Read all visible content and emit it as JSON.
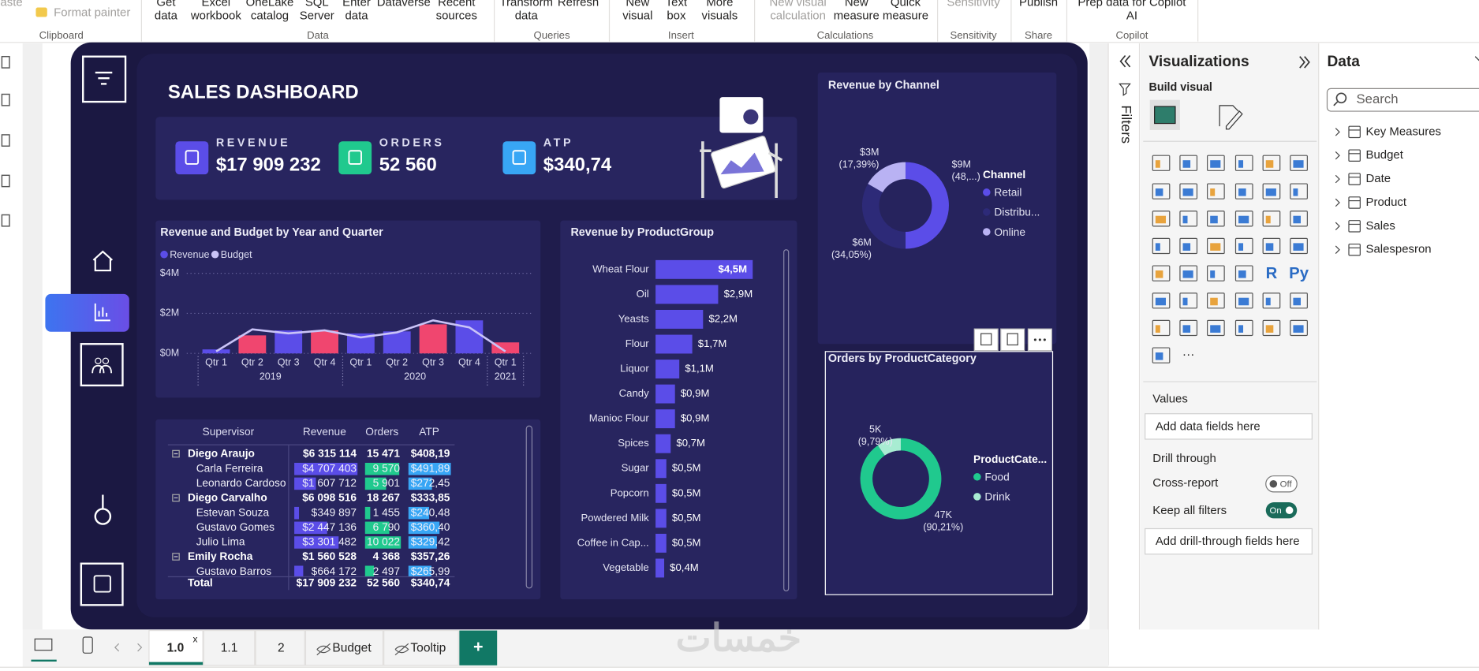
{
  "ribbon": {
    "groups": [
      {
        "label": "Clipboard",
        "buttons": [
          [
            "Paste"
          ],
          [
            "Format painter"
          ]
        ]
      },
      {
        "label": "Data",
        "buttons": [
          [
            "Get",
            "data"
          ],
          [
            "Excel",
            "workbook"
          ],
          [
            "OneLake",
            "catalog"
          ],
          [
            "SQL",
            "Server"
          ],
          [
            "Enter",
            "data"
          ],
          [
            "Dataverse"
          ],
          [
            "Recent",
            "sources"
          ]
        ]
      },
      {
        "label": "Queries",
        "buttons": [
          [
            "Transform",
            "data"
          ],
          [
            "Refresh"
          ]
        ]
      },
      {
        "label": "Insert",
        "buttons": [
          [
            "New",
            "visual"
          ],
          [
            "Text",
            "box"
          ],
          [
            "More",
            "visuals"
          ]
        ]
      },
      {
        "label": "Calculations",
        "buttons": [
          [
            "New visual",
            "calculation"
          ],
          [
            "New",
            "measure"
          ],
          [
            "Quick",
            "measure"
          ]
        ]
      },
      {
        "label": "Sensitivity",
        "buttons": [
          [
            "Sensitivity"
          ]
        ]
      },
      {
        "label": "Share",
        "buttons": [
          [
            "Publish"
          ]
        ]
      },
      {
        "label": "Copilot",
        "buttons": [
          [
            "Prep data for Copilot",
            "AI"
          ]
        ]
      }
    ]
  },
  "dashboard": {
    "title": "SALES DASHBOARD",
    "kpis": [
      {
        "label": "REVENUE",
        "value": "$17 909 232",
        "color": "#5b4de8"
      },
      {
        "label": "ORDERS",
        "value": "52 560",
        "color": "#20c98e"
      },
      {
        "label": "ATP",
        "value": "$340,74",
        "color": "#38a6f5"
      }
    ],
    "matrix": {
      "headers": [
        "Supervisor",
        "Revenue",
        "Orders",
        "ATP"
      ],
      "groups": [
        {
          "cells": [
            "Diego Araujo",
            "$6 315 114",
            "15 471",
            "$408,19"
          ],
          "children": [
            [
              "Carla Ferreira",
              "$4 707 403",
              "9 570",
              "$491,89"
            ],
            [
              "Leonardo Cardoso",
              "$1 607 712",
              "5 901",
              "$272,45"
            ]
          ]
        },
        {
          "cells": [
            "Diego Carvalho",
            "$6 098 516",
            "18 267",
            "$333,85"
          ],
          "children": [
            [
              "Estevan Souza",
              "$349 897",
              "1 455",
              "$240,48"
            ],
            [
              "Gustavo Gomes",
              "$2 447 136",
              "6 790",
              "$360,40"
            ],
            [
              "Julio Lima",
              "$3 301 482",
              "10 022",
              "$329,42"
            ]
          ]
        },
        {
          "cells": [
            "Emily Rocha",
            "$1 560 528",
            "4 368",
            "$357,26"
          ],
          "children": [
            [
              "Gustavo Barros",
              "$664 172",
              "2 497",
              "$265,99"
            ]
          ]
        }
      ],
      "total": [
        "Total",
        "$17 909 232",
        "52 560",
        "$340,74"
      ],
      "bar_colors": [
        "#5b4de8",
        "#20c98e",
        "#38a6f5"
      ]
    }
  },
  "chart_data": [
    {
      "type": "combo",
      "title": "Revenue and Budget by Year and Quarter",
      "groups": [
        {
          "name": "2019",
          "categories": [
            "Qtr 1",
            "Qtr 2",
            "Qtr 3",
            "Qtr 4"
          ]
        },
        {
          "name": "2020",
          "categories": [
            "Qtr 1",
            "Qtr 2",
            "Qtr 3",
            "Qtr 4"
          ]
        },
        {
          "name": "2021",
          "categories": [
            "Qtr 1"
          ]
        }
      ],
      "series": [
        {
          "name": "Revenue",
          "color": "#5b4de8",
          "colors": [
            "#5b4de8",
            "#f0466f",
            "#5b4de8",
            "#f0466f",
            "#5b4de8",
            "#5b4de8",
            "#f0466f",
            "#5b4de8",
            "#f0466f"
          ],
          "values": [
            0.2,
            0.9,
            1.15,
            1.15,
            1.0,
            1.1,
            1.45,
            1.65,
            0.55
          ]
        },
        {
          "name": "Budget",
          "color": "#c9c3f7",
          "values": [
            0.1,
            1.2,
            1.0,
            1.15,
            0.8,
            1.05,
            1.65,
            1.3,
            0.1
          ]
        }
      ],
      "ylim": [
        0,
        4
      ],
      "yticks": [
        {
          "value": 0,
          "label": "$0M"
        },
        {
          "value": 2,
          "label": "$2M"
        },
        {
          "value": 4,
          "label": "$4M"
        }
      ],
      "grid": true
    },
    {
      "type": "hbar",
      "title": "Revenue by ProductGroup",
      "categories": [
        "Wheat Flour",
        "Oil",
        "Yeasts",
        "Flour",
        "Liquor",
        "Candy",
        "Manioc Flour",
        "Spices",
        "Sugar",
        "Popcorn",
        "Powdered Milk",
        "Coffee in Cap...",
        "Vegetable"
      ],
      "values": [
        4.5,
        2.9,
        2.2,
        1.7,
        1.1,
        0.9,
        0.9,
        0.7,
        0.5,
        0.5,
        0.5,
        0.5,
        0.4
      ],
      "value_labels": [
        "$4,5M",
        "$2,9M",
        "$2,2M",
        "$1,7M",
        "$1,1M",
        "$0,9M",
        "$0,9M",
        "$0,7M",
        "$0,5M",
        "$0,5M",
        "$0,5M",
        "$0,5M",
        "$0,4M"
      ],
      "color": "#5b4de8"
    },
    {
      "type": "donut",
      "title": "Revenue by Channel",
      "legend_title": "Channel",
      "categories": [
        "Retail",
        "Distribu...",
        "Online"
      ],
      "values": [
        9,
        6,
        3
      ],
      "value_labels": [
        "$9M",
        "$6M",
        "$3M"
      ],
      "percent_labels": [
        "(48,...)",
        "(34,05%)",
        "(17,39%)"
      ],
      "colors": [
        "#5b4de8",
        "#2d2a78",
        "#b9b2f3"
      ]
    },
    {
      "type": "donut",
      "title": "Orders by ProductCategory",
      "legend_title": "ProductCate...",
      "categories": [
        "Food",
        "Drink"
      ],
      "values": [
        47,
        5
      ],
      "value_labels": [
        "47K",
        "5K"
      ],
      "percent_labels": [
        "(90,21%)",
        "(9,79%)"
      ],
      "colors": [
        "#20c98e",
        "#a8ecd2"
      ]
    }
  ],
  "filters": "Filters",
  "visualizations": {
    "title": "Visualizations",
    "build_visual": "Build visual",
    "icon_labels": [
      "R",
      "Py"
    ],
    "more": "···",
    "values_label": "Values",
    "add_fields": "Add data fields here",
    "drill_through": "Drill through",
    "cross_report": "Cross-report",
    "cross_report_state": "Off",
    "keep_filters": "Keep all filters",
    "keep_filters_state": "On",
    "add_drill": "Add drill-through fields here"
  },
  "data_pane": {
    "title": "Data",
    "search": "Search",
    "tables": [
      "Key Measures",
      "Budget",
      "Date",
      "Product",
      "Sales",
      "Salespesron"
    ]
  },
  "tabs": {
    "pages": [
      "1.0",
      "1.1",
      "2",
      "Budget",
      "Tooltip"
    ],
    "close": "x",
    "add": "+"
  },
  "watermark": "خمسات"
}
